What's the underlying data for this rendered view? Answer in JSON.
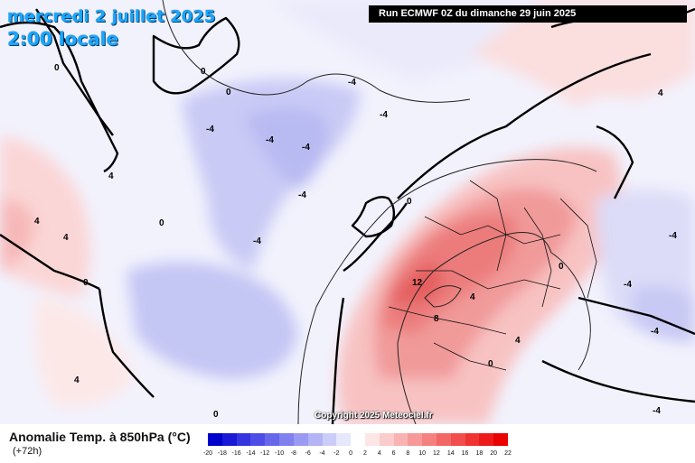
{
  "header": {
    "date": "mercredi 2 juillet 2025",
    "time": "2:00 locale",
    "run": "Run ECMWF 0Z du dimanche 29 juin 2025"
  },
  "map": {
    "copyright": "Copyright 2025 Meteociel.fr",
    "contour_labels": [
      "-4",
      "0",
      "4",
      "8",
      "12"
    ],
    "region": "North Atlantic and Europe"
  },
  "legend": {
    "title": "Anomalie Temp. à 850hPa (°C)",
    "lead_time": "(+72h)",
    "ticks": [
      "-20",
      "-18",
      "-16",
      "-14",
      "-12",
      "-10",
      "-8",
      "-6",
      "-4",
      "-2",
      "0",
      "2",
      "4",
      "6",
      "8",
      "10",
      "12",
      "14",
      "16",
      "18",
      "20",
      "22"
    ],
    "colors": [
      "#0000cc",
      "#1a1ad6",
      "#3434e0",
      "#4e4ee6",
      "#6767ea",
      "#8080ee",
      "#9a9af2",
      "#b3b3f6",
      "#ccccf9",
      "#e6e6fc",
      "#ffffff",
      "#fde6e6",
      "#fbcccc",
      "#f9b3b3",
      "#f79999",
      "#f58080",
      "#f36666",
      "#f14d4d",
      "#ef3333",
      "#ed1a1a",
      "#eb0000"
    ]
  }
}
